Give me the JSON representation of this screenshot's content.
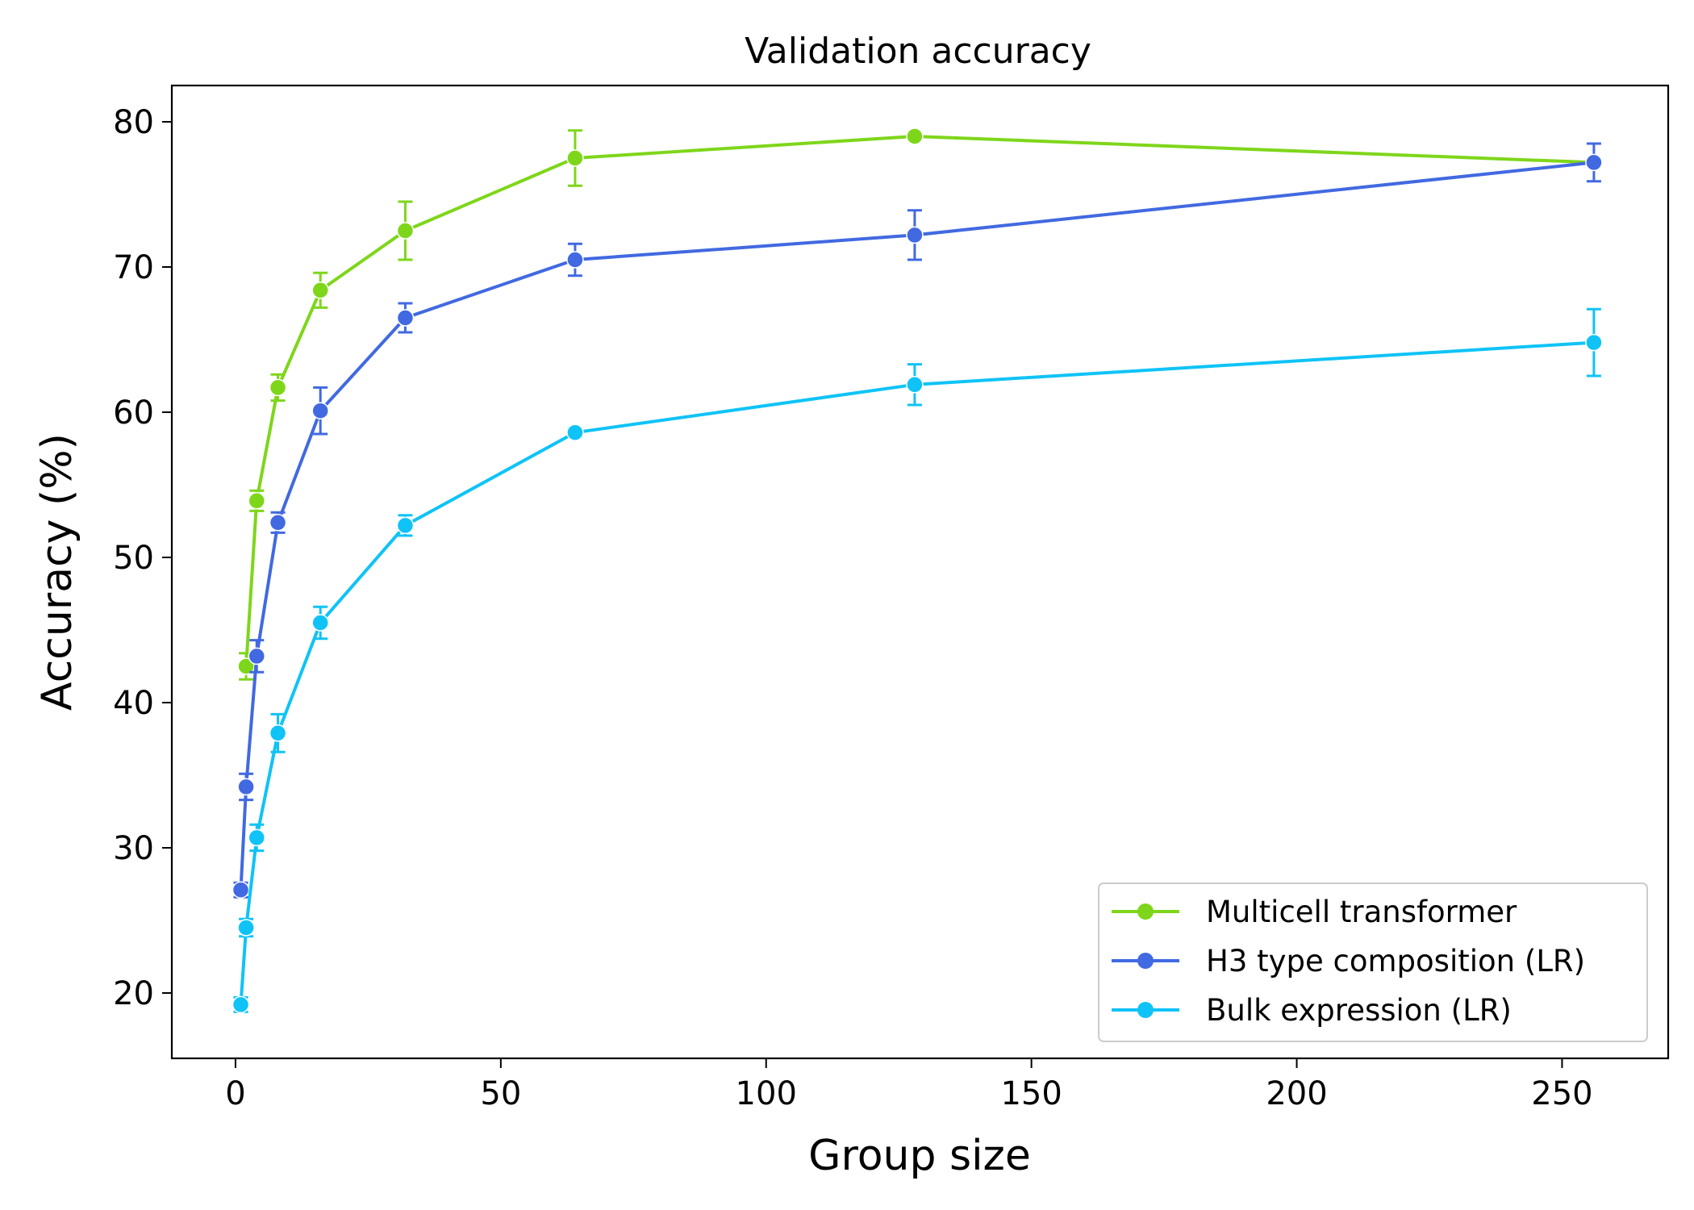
{
  "chart_data": {
    "type": "line",
    "title": "Validation accuracy",
    "xlabel": "Group size",
    "ylabel": "Accuracy (%)",
    "xlim": [
      -12,
      270
    ],
    "ylim": [
      15.5,
      82.5
    ],
    "xticks": [
      0,
      50,
      100,
      150,
      200,
      250
    ],
    "yticks": [
      20,
      30,
      40,
      50,
      60,
      70,
      80
    ],
    "grid": false,
    "legend_position": "bottom-right",
    "series": [
      {
        "name": "Multicell transformer",
        "color": "#7ed61a",
        "points": [
          {
            "x": 2,
            "y": 42.5,
            "err": 0.9
          },
          {
            "x": 4,
            "y": 53.9,
            "err": 0.7
          },
          {
            "x": 8,
            "y": 61.7,
            "err": 0.9
          },
          {
            "x": 16,
            "y": 68.4,
            "err": 1.2
          },
          {
            "x": 32,
            "y": 72.5,
            "err": 2.0
          },
          {
            "x": 64,
            "y": 77.5,
            "err": 1.9
          },
          {
            "x": 128,
            "y": 79.0,
            "err": 0.0
          },
          {
            "x": 256,
            "y": 77.2,
            "err": 0.0
          }
        ]
      },
      {
        "name": "H3 type composition (LR)",
        "color": "#4169e1",
        "points": [
          {
            "x": 1,
            "y": 27.1,
            "err": 0.5
          },
          {
            "x": 2,
            "y": 34.2,
            "err": 0.9
          },
          {
            "x": 4,
            "y": 43.2,
            "err": 1.1
          },
          {
            "x": 8,
            "y": 52.4,
            "err": 0.7
          },
          {
            "x": 16,
            "y": 60.1,
            "err": 1.6
          },
          {
            "x": 32,
            "y": 66.5,
            "err": 1.0
          },
          {
            "x": 64,
            "y": 70.5,
            "err": 1.1
          },
          {
            "x": 128,
            "y": 72.2,
            "err": 1.7
          },
          {
            "x": 256,
            "y": 77.2,
            "err": 1.3
          }
        ]
      },
      {
        "name": "Bulk expression (LR)",
        "color": "#0fc3f7",
        "points": [
          {
            "x": 1,
            "y": 19.2,
            "err": 0.5
          },
          {
            "x": 2,
            "y": 24.5,
            "err": 0.6
          },
          {
            "x": 4,
            "y": 30.7,
            "err": 0.9
          },
          {
            "x": 8,
            "y": 37.9,
            "err": 1.3
          },
          {
            "x": 16,
            "y": 45.5,
            "err": 1.1
          },
          {
            "x": 32,
            "y": 52.2,
            "err": 0.7
          },
          {
            "x": 64,
            "y": 58.6,
            "err": 0.3
          },
          {
            "x": 128,
            "y": 61.9,
            "err": 1.4
          },
          {
            "x": 256,
            "y": 64.8,
            "err": 2.3
          }
        ]
      }
    ]
  }
}
